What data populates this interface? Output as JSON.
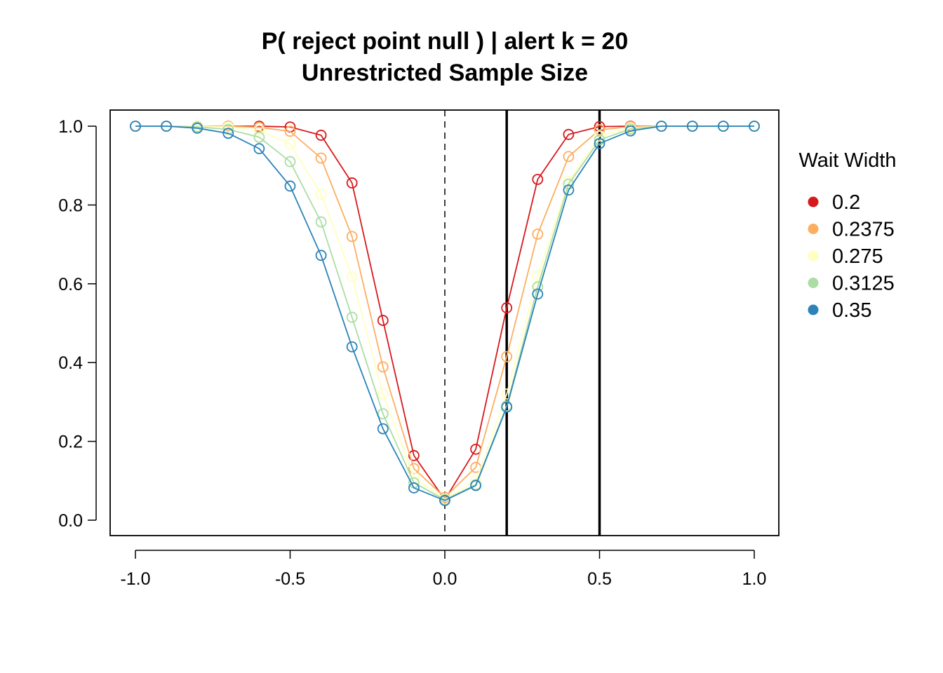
{
  "chart_data": {
    "type": "line",
    "title": "P( reject point null ) | alert k = 20",
    "subtitle": "Unrestricted Sample Size",
    "xlabel": "",
    "ylabel": "",
    "xlim": [
      -1.0,
      1.0
    ],
    "ylim": [
      0.0,
      1.0
    ],
    "x_ticks": [
      "-1.0",
      "-0.5",
      "0.0",
      "0.5",
      "1.0"
    ],
    "y_ticks": [
      "0.0",
      "0.2",
      "0.4",
      "0.6",
      "0.8",
      "1.0"
    ],
    "grid": false,
    "legend": {
      "title": "Wait Width",
      "placement": "right"
    },
    "x": [
      -1.0,
      -0.9,
      -0.8,
      -0.7,
      -0.6,
      -0.5,
      -0.4,
      -0.3,
      -0.2,
      -0.1,
      0.0,
      0.1,
      0.2,
      0.3,
      0.4,
      0.5,
      0.6,
      0.7,
      0.8,
      0.9,
      1.0
    ],
    "vlines": [
      {
        "x": 0.0,
        "style": "dashed"
      },
      {
        "x": 0.2,
        "style": "solid"
      },
      {
        "x": 0.5,
        "style": "solid"
      }
    ],
    "series": [
      {
        "name": "0.2",
        "color": "#d7191c",
        "values": [
          1.0,
          1.0,
          1.0,
          1.0,
          1.0,
          0.998,
          0.977,
          0.856,
          0.507,
          0.164,
          0.052,
          0.18,
          0.539,
          0.865,
          0.979,
          0.999,
          1.0,
          1.0,
          1.0,
          1.0,
          1.0
        ]
      },
      {
        "name": "0.2375",
        "color": "#fdae61",
        "values": [
          1.0,
          1.0,
          1.0,
          1.0,
          0.997,
          0.987,
          0.919,
          0.72,
          0.389,
          0.131,
          0.058,
          0.134,
          0.415,
          0.726,
          0.923,
          0.991,
          0.999,
          1.0,
          1.0,
          1.0,
          1.0
        ]
      },
      {
        "name": "0.275",
        "color": "#ffffbf",
        "values": [
          1.0,
          1.0,
          1.0,
          0.998,
          0.99,
          0.955,
          0.828,
          0.618,
          0.32,
          0.108,
          0.054,
          0.1,
          0.32,
          0.62,
          0.86,
          0.975,
          0.996,
          1.0,
          1.0,
          1.0,
          1.0
        ]
      },
      {
        "name": "0.3125",
        "color": "#abdda4",
        "values": [
          1.0,
          1.0,
          0.998,
          0.992,
          0.972,
          0.91,
          0.757,
          0.515,
          0.27,
          0.095,
          0.052,
          0.09,
          0.29,
          0.592,
          0.853,
          0.965,
          0.993,
          1.0,
          1.0,
          1.0,
          1.0
        ]
      },
      {
        "name": "0.35",
        "color": "#2b83ba",
        "values": [
          1.0,
          1.0,
          0.995,
          0.982,
          0.943,
          0.848,
          0.672,
          0.44,
          0.232,
          0.082,
          0.05,
          0.088,
          0.287,
          0.574,
          0.838,
          0.956,
          0.988,
          1.0,
          1.0,
          1.0,
          1.0
        ]
      }
    ]
  }
}
